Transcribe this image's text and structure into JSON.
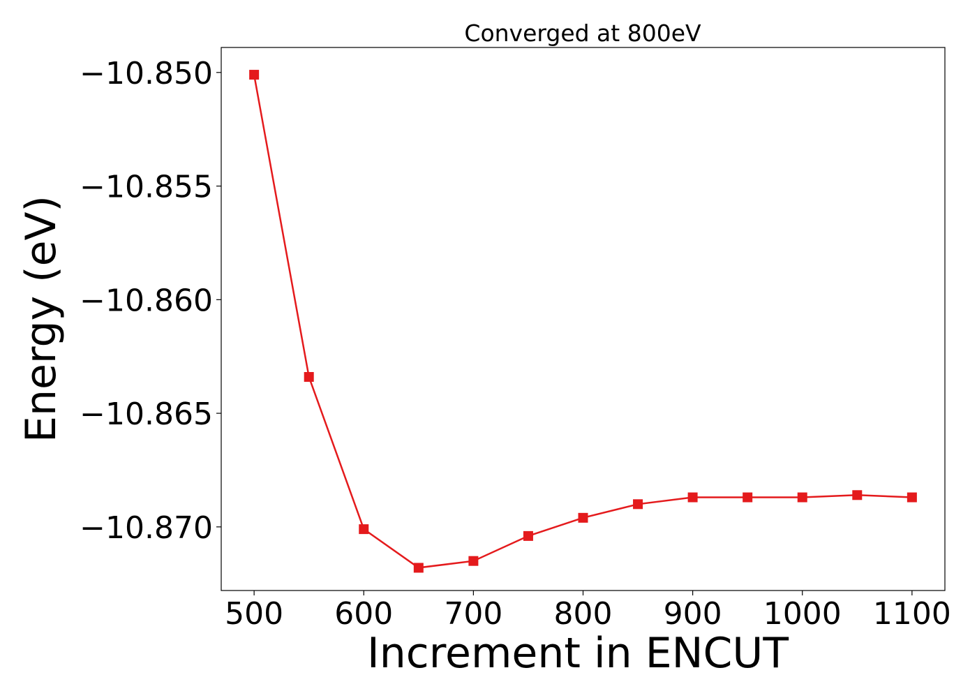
{
  "chart_data": {
    "type": "line",
    "title": "Converged at 800eV",
    "xlabel": "Increment in ENCUT",
    "ylabel": "Energy (eV)",
    "xlim": [
      470,
      1130
    ],
    "ylim": [
      -10.8728,
      -10.8489
    ],
    "xticks": [
      500,
      600,
      700,
      800,
      900,
      1000,
      1100
    ],
    "yticks": [
      -10.85,
      -10.855,
      -10.86,
      -10.865,
      -10.87
    ],
    "ytick_labels": [
      "−10.850",
      "−10.855",
      "−10.860",
      "−10.865",
      "−10.870"
    ],
    "grid": false,
    "marker": "square",
    "series": [
      {
        "color": "#e41a1c",
        "x": [
          500,
          550,
          600,
          650,
          700,
          750,
          800,
          850,
          900,
          950,
          1000,
          1050,
          1100
        ],
        "y": [
          -10.8501,
          -10.8634,
          -10.8701,
          -10.8718,
          -10.8715,
          -10.8704,
          -10.8696,
          -10.869,
          -10.8687,
          -10.8687,
          -10.8687,
          -10.8686,
          -10.8687
        ]
      }
    ]
  }
}
